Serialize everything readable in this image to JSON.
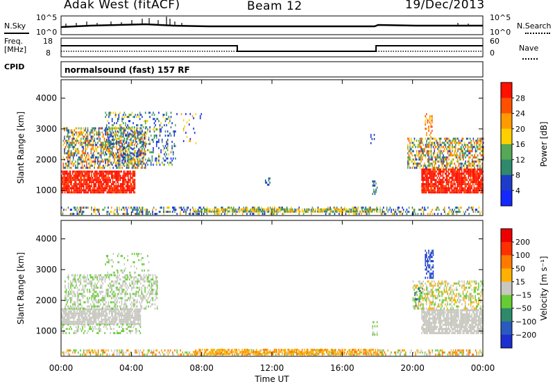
{
  "header": {
    "radar": "Adak West (fitACF)",
    "beam": "Beam 12",
    "date": "19/Dec/2013"
  },
  "strip1": {
    "left_label": "N.Sky",
    "right_label": "N.Search",
    "left_ticks": [
      "10^5",
      "10^0"
    ],
    "right_ticks": [
      "10^5",
      "10^0"
    ]
  },
  "strip2": {
    "left_label_1": "Freq.",
    "left_label_2": "[MHz]",
    "right_label": "Nave",
    "left_ticks": [
      "18",
      "8"
    ],
    "right_ticks": [
      "60",
      "0"
    ]
  },
  "cpid": {
    "label": "CPID",
    "value": "normalsound (fast) 157 RF"
  },
  "chart_data": [
    {
      "type": "heatmap",
      "title": "Power",
      "ylabel": "Slant Range [km]",
      "xlabel": "",
      "x_ticks": [
        "00:00",
        "04:00",
        "08:00",
        "12:00",
        "16:00",
        "20:00",
        "00:00"
      ],
      "y_ticks": [
        1000,
        2000,
        3000,
        4000
      ],
      "ylim": [
        180,
        4600
      ],
      "xlim_hours": [
        0,
        24
      ],
      "colorbar": {
        "label": "Power [dB]",
        "ticks": [
          "4",
          "8",
          "12",
          "16",
          "20",
          "24",
          "28"
        ],
        "colors": [
          "#1428ff",
          "#1e3cc8",
          "#2e8a6a",
          "#55a855",
          "#ffd000",
          "#ff9a00",
          "#ff5000",
          "#ff1000"
        ]
      }
    },
    {
      "type": "heatmap",
      "title": "Velocity",
      "ylabel": "Slant Range [km]",
      "xlabel": "Time UT",
      "x_ticks": [
        "00:00",
        "04:00",
        "08:00",
        "12:00",
        "16:00",
        "20:00",
        "00:00"
      ],
      "y_ticks": [
        1000,
        2000,
        3000,
        4000
      ],
      "ylim": [
        180,
        4600
      ],
      "xlim_hours": [
        0,
        24
      ],
      "colorbar": {
        "label": "Velocity [m s⁻¹]",
        "ticks": [
          "200",
          "100",
          "50",
          "15",
          "−15",
          "−50",
          "−100",
          "−200"
        ],
        "colors": [
          "#1c2fd0",
          "#2a5ac0",
          "#2e8a6a",
          "#66cc33",
          "#c8c8c0",
          "#ffb000",
          "#ff7a00",
          "#ff3000",
          "#ee0000"
        ]
      }
    }
  ]
}
